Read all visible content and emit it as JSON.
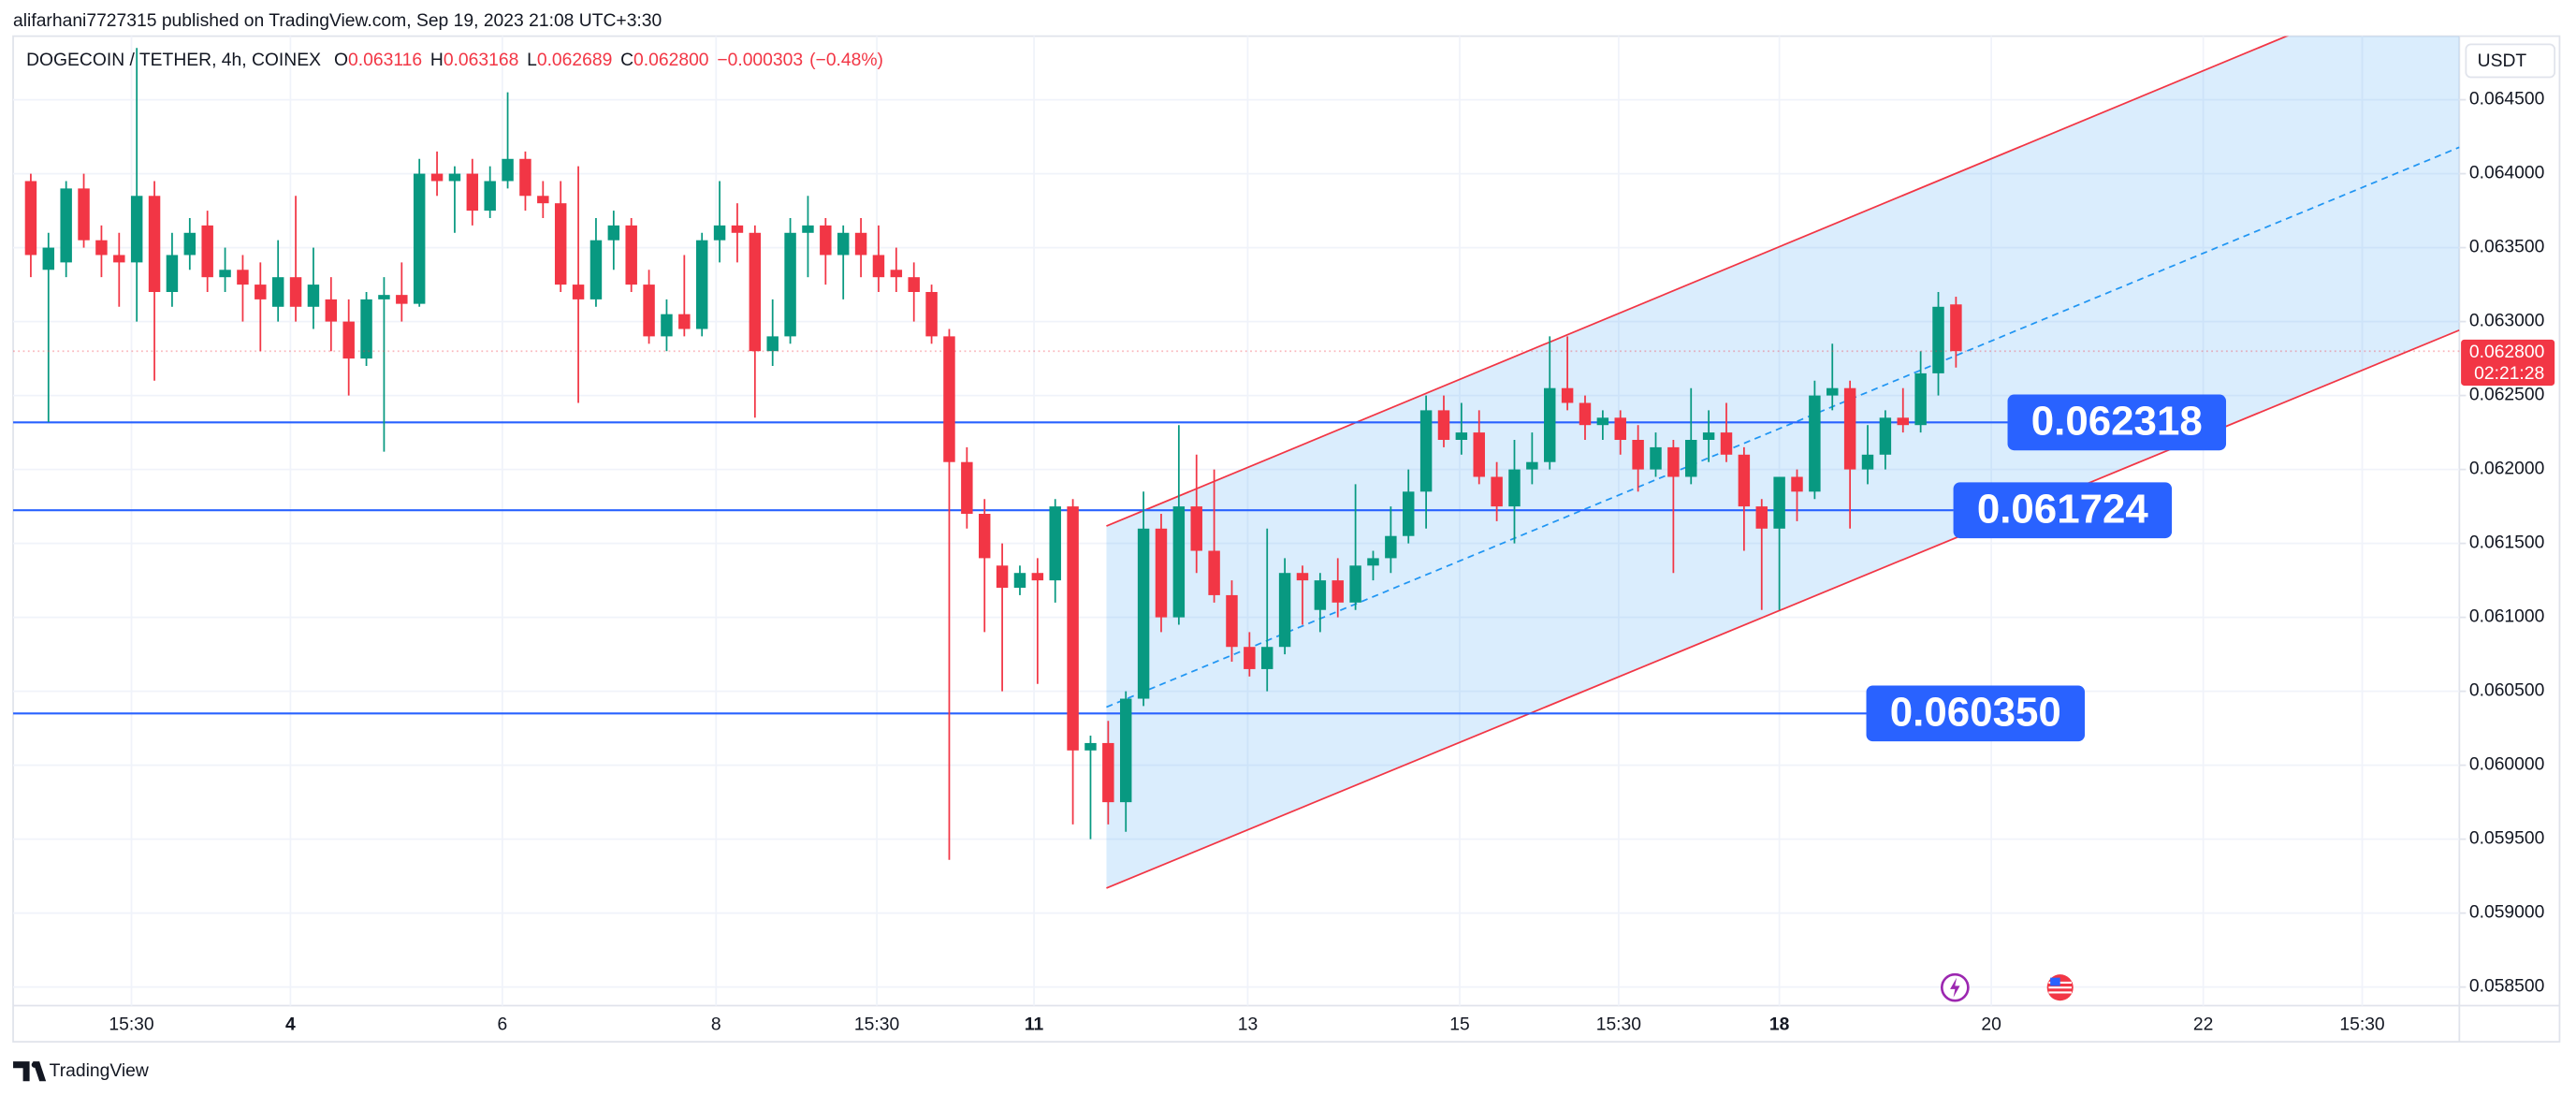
{
  "header": {
    "text": "alifarhani7727315 published on TradingView.com, Sep 19, 2023 21:08 UTC+3:30"
  },
  "chart_data": {
    "type": "candlestick",
    "symbol": "DOGECOIN / TETHER, 4h, COINEX",
    "legend": [
      {
        "letter": "O",
        "value": 0.063116
      },
      {
        "letter": "H",
        "value": 0.063168
      },
      {
        "letter": "L",
        "value": 0.062689
      },
      {
        "letter": "C",
        "value": {
          "value": 0.0628,
          "label": "0.062800"
        }
      }
    ],
    "change": {
      "value": -0.000303,
      "label": "−0.000303"
    },
    "change_pct": {
      "value": -0.48,
      "label": "(−0.48%)"
    },
    "currency": "USDT",
    "up_color": "#089981",
    "down_color": "#f23645",
    "open": [
      0.06395,
      0.06335,
      0.0634,
      0.0639,
      0.06355,
      0.06345,
      0.0634,
      0.06385,
      0.0632,
      0.06345,
      0.06365,
      0.0633,
      0.06335,
      0.06325,
      0.0631,
      0.0633,
      0.0631,
      0.06315,
      0.063,
      0.06275,
      0.06315,
      0.06318,
      0.06312,
      0.064,
      0.06395,
      0.064,
      0.06375,
      0.06395,
      0.0641,
      0.06385,
      0.0638,
      0.06325,
      0.06315,
      0.06355,
      0.06365,
      0.06325,
      0.0629,
      0.06305,
      0.06295,
      0.06355,
      0.06365,
      0.0636,
      0.0628,
      0.0629,
      0.0636,
      0.06365,
      0.06345,
      0.0636,
      0.06345,
      0.06335,
      0.0633,
      0.0632,
      0.0629,
      0.06205,
      0.0617,
      0.06135,
      0.0612,
      0.0613,
      0.06125,
      0.06175,
      0.0601,
      0.06015,
      0.05975,
      0.06045,
      0.0616,
      0.061,
      0.06175,
      0.06145,
      0.06115,
      0.0608,
      0.06065,
      0.0608,
      0.0613,
      0.06105,
      0.06125,
      0.0611,
      0.06135,
      0.0614,
      0.06155,
      0.06185,
      0.0624,
      0.0622,
      0.06225,
      0.06195,
      0.06175,
      0.062,
      0.06205,
      0.06255,
      0.06245,
      0.0623,
      0.06235,
      0.0622,
      0.062,
      0.06215,
      0.06195,
      0.0622,
      0.06225,
      0.0621,
      0.06175,
      0.0616,
      0.06195,
      0.06185,
      0.0625,
      0.06255,
      0.062,
      0.0621,
      0.06235,
      0.0623,
      0.06265,
      0.063116
    ],
    "high": [
      0.064,
      0.0636,
      0.06395,
      0.064,
      0.06365,
      0.0636,
      0.06485,
      0.06395,
      0.0636,
      0.0637,
      0.06375,
      0.0635,
      0.06345,
      0.0634,
      0.06355,
      0.06385,
      0.0635,
      0.0633,
      0.06315,
      0.0632,
      0.0633,
      0.0634,
      0.0641,
      0.06415,
      0.06405,
      0.0641,
      0.06405,
      0.06455,
      0.06415,
      0.06395,
      0.06395,
      0.06405,
      0.0637,
      0.06375,
      0.0637,
      0.06335,
      0.06315,
      0.06345,
      0.0636,
      0.06395,
      0.0638,
      0.06365,
      0.06315,
      0.0637,
      0.06385,
      0.0637,
      0.06365,
      0.0637,
      0.06365,
      0.0635,
      0.0634,
      0.06325,
      0.06295,
      0.06215,
      0.0618,
      0.0615,
      0.06135,
      0.0614,
      0.0618,
      0.0618,
      0.0602,
      0.0603,
      0.0605,
      0.06185,
      0.0617,
      0.0623,
      0.0621,
      0.062,
      0.06125,
      0.0609,
      0.0616,
      0.0614,
      0.06135,
      0.0613,
      0.0614,
      0.0619,
      0.06145,
      0.06175,
      0.062,
      0.0625,
      0.0625,
      0.06245,
      0.0624,
      0.06205,
      0.0622,
      0.06225,
      0.0629,
      0.0629,
      0.0625,
      0.0624,
      0.0624,
      0.0623,
      0.06225,
      0.0622,
      0.06255,
      0.0624,
      0.06245,
      0.06215,
      0.0618,
      0.06195,
      0.062,
      0.0626,
      0.06285,
      0.0626,
      0.0623,
      0.0624,
      0.06255,
      0.0628,
      0.0632,
      0.063168
    ],
    "low": [
      0.0633,
      0.06232,
      0.0633,
      0.0635,
      0.0633,
      0.0631,
      0.063,
      0.0626,
      0.0631,
      0.06335,
      0.0632,
      0.0632,
      0.063,
      0.0628,
      0.063,
      0.063,
      0.06295,
      0.0628,
      0.0625,
      0.0627,
      0.06212,
      0.063,
      0.0631,
      0.06385,
      0.0636,
      0.06365,
      0.0637,
      0.0639,
      0.06375,
      0.0637,
      0.0632,
      0.06245,
      0.0631,
      0.06335,
      0.0632,
      0.06285,
      0.0628,
      0.0629,
      0.0629,
      0.0634,
      0.0634,
      0.06235,
      0.0627,
      0.06285,
      0.0633,
      0.06325,
      0.06315,
      0.0633,
      0.0632,
      0.0632,
      0.063,
      0.06285,
      0.05936,
      0.0616,
      0.0609,
      0.0605,
      0.06115,
      0.06055,
      0.0611,
      0.0596,
      0.0595,
      0.0596,
      0.05955,
      0.0604,
      0.0609,
      0.06095,
      0.0613,
      0.0611,
      0.0607,
      0.0606,
      0.0605,
      0.06075,
      0.06095,
      0.0609,
      0.061,
      0.06105,
      0.06125,
      0.0613,
      0.0615,
      0.0616,
      0.06215,
      0.0621,
      0.0619,
      0.06165,
      0.0615,
      0.0619,
      0.062,
      0.0624,
      0.0622,
      0.0622,
      0.0621,
      0.06185,
      0.06195,
      0.0613,
      0.0619,
      0.06205,
      0.06205,
      0.06145,
      0.06105,
      0.06105,
      0.06165,
      0.0618,
      0.0624,
      0.0616,
      0.0619,
      0.062,
      0.06225,
      0.06225,
      0.0625,
      0.062689
    ],
    "close": [
      0.06345,
      0.0635,
      0.0639,
      0.06355,
      0.06345,
      0.0634,
      0.06385,
      0.0632,
      0.06345,
      0.0636,
      0.0633,
      0.06335,
      0.06325,
      0.06315,
      0.0633,
      0.0631,
      0.06325,
      0.063,
      0.06275,
      0.06315,
      0.06318,
      0.06312,
      0.064,
      0.06395,
      0.064,
      0.06375,
      0.06395,
      0.0641,
      0.06385,
      0.0638,
      0.06325,
      0.06315,
      0.06355,
      0.06365,
      0.06325,
      0.0629,
      0.06305,
      0.06295,
      0.06355,
      0.06365,
      0.0636,
      0.0628,
      0.0629,
      0.0636,
      0.06365,
      0.06345,
      0.0636,
      0.06345,
      0.0633,
      0.0633,
      0.0632,
      0.0629,
      0.06205,
      0.0617,
      0.0614,
      0.0612,
      0.0613,
      0.06125,
      0.06175,
      0.0601,
      0.06015,
      0.05975,
      0.06045,
      0.0616,
      0.061,
      0.06175,
      0.06145,
      0.06115,
      0.0608,
      0.06065,
      0.0608,
      0.0613,
      0.06125,
      0.06125,
      0.0611,
      0.06135,
      0.0614,
      0.06155,
      0.06185,
      0.0624,
      0.0622,
      0.06225,
      0.06195,
      0.06175,
      0.062,
      0.06205,
      0.06255,
      0.06245,
      0.0623,
      0.06235,
      0.0622,
      0.062,
      0.06215,
      0.06195,
      0.0622,
      0.06225,
      0.0621,
      0.06175,
      0.0616,
      0.06195,
      0.06185,
      0.0625,
      0.06255,
      0.062,
      0.0621,
      0.06235,
      0.0623,
      0.06265,
      0.0631,
      0.0628
    ],
    "xlim": [
      -1,
      137.5
    ],
    "xticks": [
      {
        "value": 5.7,
        "label": "15:30"
      },
      {
        "value": 14.7,
        "label": "4",
        "bold": true
      },
      {
        "value": 26.7,
        "label": "6"
      },
      {
        "value": 38.8,
        "label": "8"
      },
      {
        "value": 47.9,
        "label": "15:30"
      },
      {
        "value": 56.8,
        "label": "11",
        "bold": true
      },
      {
        "value": 68.9,
        "label": "13"
      },
      {
        "value": 80.9,
        "label": "15"
      },
      {
        "value": 89.9,
        "label": "15:30"
      },
      {
        "value": 99,
        "label": "18",
        "bold": true
      },
      {
        "value": 111,
        "label": "20"
      },
      {
        "value": 123,
        "label": "22"
      },
      {
        "value": 132,
        "label": "15:30"
      }
    ],
    "ylim": [
      0.05843,
      0.06493
    ],
    "yticks": [
      {
        "value": 0.0585,
        "label": "0.058500"
      },
      {
        "value": 0.059,
        "label": "0.059000"
      },
      {
        "value": 0.0595,
        "label": "0.059500"
      },
      {
        "value": 0.06,
        "label": "0.060000"
      },
      {
        "value": 0.0605,
        "label": "0.060500"
      },
      {
        "value": 0.061,
        "label": "0.061000"
      },
      {
        "value": 0.0615,
        "label": "0.061500"
      },
      {
        "value": 0.062,
        "label": "0.062000"
      },
      {
        "value": 0.0625,
        "label": "0.062500"
      },
      {
        "value": 0.063,
        "label": "0.063000"
      },
      {
        "value": 0.0635,
        "label": "0.063500"
      },
      {
        "value": 0.064,
        "label": "0.064000"
      },
      {
        "value": 0.0645,
        "label": "0.064500"
      }
    ],
    "grid": true,
    "levels": [
      {
        "value": 0.062318,
        "label": "0.062318"
      },
      {
        "value": 0.061724,
        "label": "0.061724"
      },
      {
        "value": 0.06035,
        "label": "0.060350"
      }
    ],
    "level_color": "#2962ff",
    "channel": {
      "x": [
        60.9,
        137.5
      ],
      "upper": [
        0.061617,
        0.065415
      ],
      "lower": [
        0.059169,
        0.062942
      ],
      "line_color": "#f23645",
      "fill_color": "#2196f3"
    },
    "price_tag": {
      "price": {
        "value": 0.0628,
        "label": "0.062800"
      },
      "countdown": "02:21:28"
    }
  },
  "footer": {
    "brand": "TradingView"
  }
}
